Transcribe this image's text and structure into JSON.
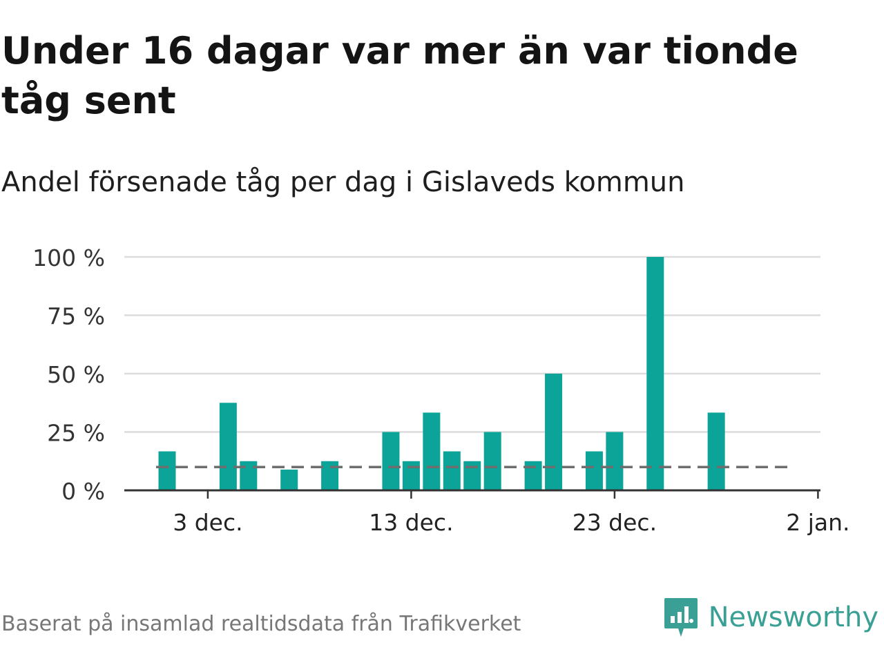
{
  "header": {
    "title": "Under 16 dagar var mer än var tionde tåg sent",
    "subtitle": "Andel försenade tåg per dag i Gislaveds kommun"
  },
  "footer": {
    "source": "Baserat på insamlad realtidsdata från Trafikverket",
    "brand": "Newsworthy"
  },
  "colors": {
    "bar": "#0ca399",
    "grid": "#dcdcdc",
    "axis": "#333333",
    "average_line": "#6e6e6e",
    "brand": "#3a9f94"
  },
  "chart_data": {
    "type": "bar",
    "x": [
      "1 dec.",
      "2 dec.",
      "3 dec.",
      "4 dec.",
      "5 dec.",
      "6 dec.",
      "7 dec.",
      "8 dec.",
      "9 dec.",
      "10 dec.",
      "11 dec.",
      "12 dec.",
      "13 dec.",
      "14 dec.",
      "15 dec.",
      "16 dec.",
      "17 dec.",
      "18 dec.",
      "19 dec.",
      "20 dec.",
      "21 dec.",
      "22 dec.",
      "23 dec.",
      "24 dec.",
      "25 dec.",
      "26 dec.",
      "27 dec.",
      "28 dec.",
      "29 dec.",
      "30 dec.",
      "31 dec."
    ],
    "values": [
      16.7,
      0,
      0,
      37.5,
      12.5,
      0,
      8.9,
      0,
      12.5,
      0,
      0,
      25,
      12.5,
      33.3,
      16.7,
      12.5,
      25,
      0,
      12.5,
      50,
      0,
      16.7,
      25,
      0,
      100,
      0,
      0,
      33.3,
      0,
      0,
      0
    ],
    "average": 10,
    "xticks": [
      "3 dec.",
      "13 dec.",
      "23 dec.",
      "2 jan."
    ],
    "yticks": [
      "0 %",
      "25 %",
      "50 %",
      "75 %",
      "100 %"
    ],
    "ylim": [
      0,
      100
    ],
    "grid": true,
    "legend": "none"
  }
}
